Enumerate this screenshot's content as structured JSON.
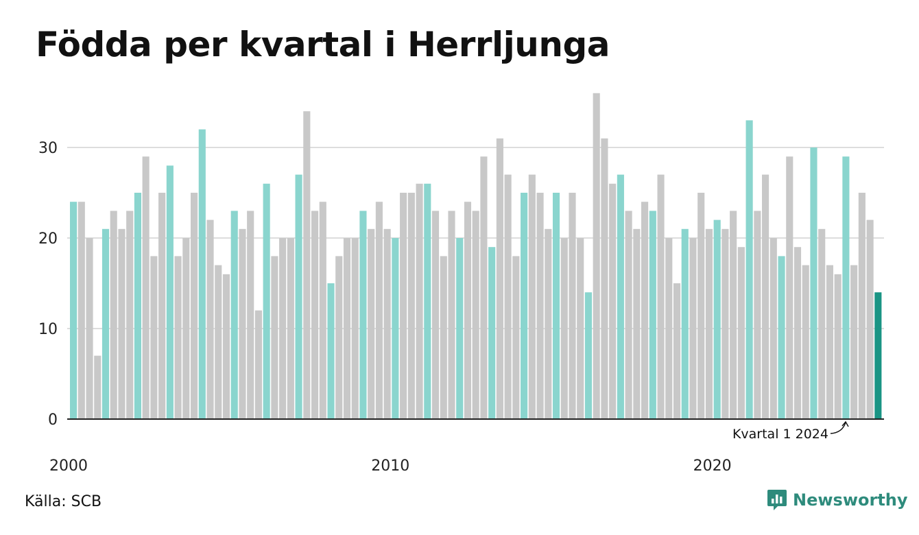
{
  "title": "Födda per kvartal i Herrljunga",
  "source": "Källa: SCB",
  "brand": {
    "name": "Newsworthy",
    "icon": "newsworthy-logo-icon",
    "color": "#2e8b7c"
  },
  "colors": {
    "highlight": "#8ad5ce",
    "other": "#c8c8c8",
    "latest": "#1a9484",
    "grid": "#dddddd",
    "axis": "#222222"
  },
  "chart_data": {
    "type": "bar",
    "title": "Födda per kvartal i Herrljunga",
    "xlabel": "",
    "ylabel": "",
    "ylim": [
      0,
      36
    ],
    "y_ticks": [
      0,
      10,
      20,
      30
    ],
    "x_tick_labels": [
      "2000",
      "2010",
      "2020"
    ],
    "grid": true,
    "highlight_rule": "Quarter 1 of each year shown in teal, other quarters in grey; latest bar in dark teal",
    "annotation": "Kvartal 1 2024",
    "values": [
      24,
      24,
      20,
      7,
      21,
      23,
      21,
      23,
      25,
      29,
      18,
      25,
      28,
      18,
      20,
      25,
      32,
      22,
      17,
      16,
      23,
      21,
      23,
      12,
      26,
      18,
      20,
      20,
      27,
      34,
      23,
      24,
      15,
      18,
      20,
      20,
      23,
      21,
      24,
      21,
      20,
      25,
      25,
      26,
      26,
      23,
      18,
      23,
      20,
      24,
      23,
      29,
      19,
      31,
      27,
      18,
      25,
      27,
      25,
      21,
      25,
      20,
      25,
      20,
      14,
      36,
      31,
      26,
      27,
      23,
      21,
      24,
      23,
      27,
      20,
      15,
      21,
      20,
      25,
      21,
      22,
      21,
      23,
      19,
      33,
      23,
      27,
      20,
      18,
      29,
      19,
      17,
      30,
      21,
      17,
      16,
      29,
      17,
      25,
      22,
      14
    ]
  }
}
